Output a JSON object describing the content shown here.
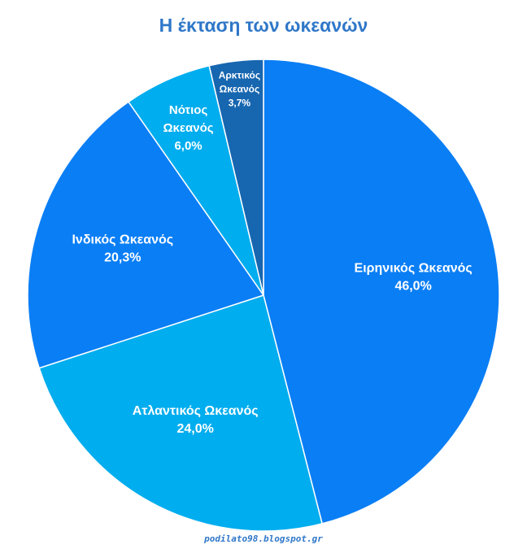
{
  "chart_data": {
    "type": "pie",
    "title": "Η έκταση των ωκεανών",
    "slices": [
      {
        "label": "Ειρηνικός Ωκεανός",
        "label_lines": [
          "Ειρηνικός Ωκεανός"
        ],
        "value": 46.0,
        "value_text": "46,0%",
        "color": "#0a7ef5"
      },
      {
        "label": "Ατλαντικός Ωκεανός",
        "label_lines": [
          "Ατλαντικός Ωκεανός"
        ],
        "value": 24.0,
        "value_text": "24,0%",
        "color": "#00adee"
      },
      {
        "label": "Ινδικός Ωκεανός",
        "label_lines": [
          "Ινδικός Ωκεανός"
        ],
        "value": 20.3,
        "value_text": "20,3%",
        "color": "#0a7ef5"
      },
      {
        "label": "Νότιος Ωκεανός",
        "label_lines": [
          "Νότιος",
          "Ωκεανός"
        ],
        "value": 6.0,
        "value_text": "6,0%",
        "color": "#00adee"
      },
      {
        "label": "Αρκτικός Ωκεανός",
        "label_lines": [
          "Αρκτικός",
          "Ωκεανός"
        ],
        "value": 3.7,
        "value_text": "3,7%",
        "color": "#1766b0"
      }
    ],
    "start_angle": "12 o'clock",
    "direction": "clockwise",
    "legend": "none",
    "data_labels": "inside"
  },
  "footer": {
    "source": "podilato98.blogspot.gr"
  }
}
